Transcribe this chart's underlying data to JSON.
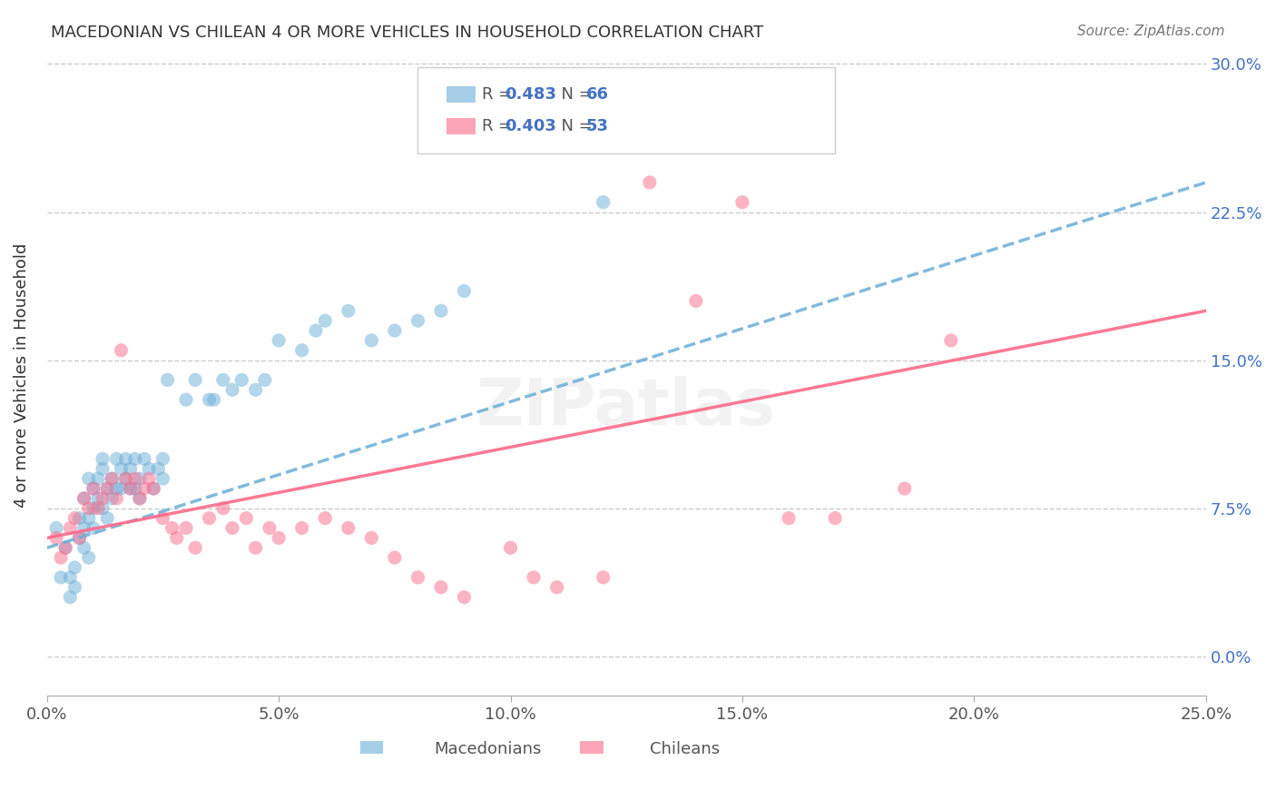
{
  "title": "MACEDONIAN VS CHILEAN 4 OR MORE VEHICLES IN HOUSEHOLD CORRELATION CHART",
  "source": "Source: ZipAtlas.com",
  "ylabel": "4 or more Vehicles in Household",
  "xlabel_ticks": [
    "0.0%",
    "5.0%",
    "10.0%",
    "15.0%",
    "20.0%",
    "25.0%"
  ],
  "ylabel_ticks": [
    "0.0%",
    "7.5%",
    "15.0%",
    "22.5%",
    "30.0%"
  ],
  "xlim": [
    0.0,
    0.25
  ],
  "ylim": [
    -0.02,
    0.305
  ],
  "macedonian_color": "#6baed6",
  "chilean_color": "#fb6a8a",
  "macedonian_R": 0.483,
  "macedonian_N": 66,
  "chilean_R": 0.403,
  "chilean_N": 53,
  "watermark": "ZIPatlas",
  "macedonian_scatter_x": [
    0.002,
    0.003,
    0.004,
    0.005,
    0.005,
    0.006,
    0.006,
    0.007,
    0.007,
    0.008,
    0.008,
    0.008,
    0.009,
    0.009,
    0.009,
    0.01,
    0.01,
    0.01,
    0.011,
    0.011,
    0.012,
    0.012,
    0.012,
    0.013,
    0.013,
    0.014,
    0.014,
    0.015,
    0.015,
    0.016,
    0.016,
    0.017,
    0.017,
    0.018,
    0.018,
    0.019,
    0.019,
    0.02,
    0.02,
    0.021,
    0.022,
    0.023,
    0.024,
    0.025,
    0.025,
    0.026,
    0.03,
    0.032,
    0.035,
    0.036,
    0.038,
    0.04,
    0.042,
    0.045,
    0.047,
    0.05,
    0.055,
    0.058,
    0.06,
    0.065,
    0.07,
    0.075,
    0.08,
    0.085,
    0.09,
    0.12
  ],
  "macedonian_scatter_y": [
    0.065,
    0.04,
    0.055,
    0.03,
    0.04,
    0.045,
    0.035,
    0.06,
    0.07,
    0.065,
    0.08,
    0.055,
    0.09,
    0.07,
    0.05,
    0.085,
    0.075,
    0.065,
    0.09,
    0.08,
    0.1,
    0.095,
    0.075,
    0.085,
    0.07,
    0.09,
    0.08,
    0.1,
    0.085,
    0.095,
    0.085,
    0.09,
    0.1,
    0.095,
    0.085,
    0.1,
    0.085,
    0.09,
    0.08,
    0.1,
    0.095,
    0.085,
    0.095,
    0.09,
    0.1,
    0.14,
    0.13,
    0.14,
    0.13,
    0.13,
    0.14,
    0.135,
    0.14,
    0.135,
    0.14,
    0.16,
    0.155,
    0.165,
    0.17,
    0.175,
    0.16,
    0.165,
    0.17,
    0.175,
    0.185,
    0.23
  ],
  "chilean_scatter_x": [
    0.002,
    0.003,
    0.004,
    0.005,
    0.006,
    0.007,
    0.008,
    0.009,
    0.01,
    0.011,
    0.012,
    0.013,
    0.014,
    0.015,
    0.016,
    0.017,
    0.018,
    0.019,
    0.02,
    0.021,
    0.022,
    0.023,
    0.025,
    0.027,
    0.028,
    0.03,
    0.032,
    0.035,
    0.038,
    0.04,
    0.043,
    0.045,
    0.048,
    0.05,
    0.055,
    0.06,
    0.065,
    0.07,
    0.075,
    0.08,
    0.085,
    0.09,
    0.1,
    0.105,
    0.11,
    0.12,
    0.13,
    0.14,
    0.15,
    0.16,
    0.17,
    0.185,
    0.195
  ],
  "chilean_scatter_y": [
    0.06,
    0.05,
    0.055,
    0.065,
    0.07,
    0.06,
    0.08,
    0.075,
    0.085,
    0.075,
    0.08,
    0.085,
    0.09,
    0.08,
    0.155,
    0.09,
    0.085,
    0.09,
    0.08,
    0.085,
    0.09,
    0.085,
    0.07,
    0.065,
    0.06,
    0.065,
    0.055,
    0.07,
    0.075,
    0.065,
    0.07,
    0.055,
    0.065,
    0.06,
    0.065,
    0.07,
    0.065,
    0.06,
    0.05,
    0.04,
    0.035,
    0.03,
    0.055,
    0.04,
    0.035,
    0.04,
    0.24,
    0.18,
    0.23,
    0.07,
    0.07,
    0.085,
    0.16
  ],
  "macedonian_trend_x": [
    0.0,
    0.25
  ],
  "macedonian_trend_y": [
    0.055,
    0.24
  ],
  "chilean_trend_x": [
    0.0,
    0.25
  ],
  "chilean_trend_y": [
    0.06,
    0.175
  ]
}
